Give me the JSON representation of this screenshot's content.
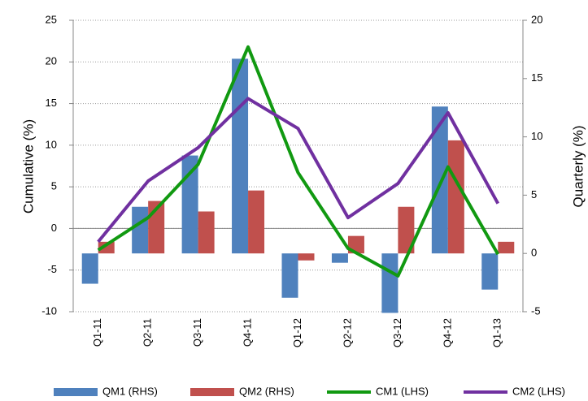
{
  "chart_data": {
    "type": "combo",
    "y_label": "Cumulative (%)",
    "y2_label": "Quarterly (%)",
    "categories": [
      "Q1-11",
      "Q2-11",
      "Q3-11",
      "Q4-11",
      "Q1-12",
      "Q2-12",
      "Q3-12",
      "Q4-12",
      "Q1-13"
    ],
    "series": [
      {
        "name": "QM1 (RHS)",
        "type": "bar",
        "axis": "y2",
        "color": "#4f81bd",
        "values": [
          -2.6,
          4.0,
          8.4,
          16.7,
          -3.8,
          -0.8,
          -5.1,
          12.6,
          -3.1
        ]
      },
      {
        "name": "QM2 (RHS)",
        "type": "bar",
        "axis": "y2",
        "color": "#c0504d",
        "values": [
          1.0,
          4.5,
          3.6,
          5.4,
          -0.6,
          1.5,
          4.0,
          9.7,
          1.0
        ]
      },
      {
        "name": "CM1 (LHS)",
        "type": "line",
        "axis": "y",
        "color": "#119911",
        "values": [
          -2.6,
          1.3,
          7.7,
          21.8,
          6.7,
          -2.4,
          -5.7,
          7.4,
          -3.1
        ]
      },
      {
        "name": "CM2 (LHS)",
        "type": "line",
        "axis": "y",
        "color": "#7030a0",
        "values": [
          -1.6,
          5.7,
          9.7,
          15.6,
          12.0,
          1.3,
          5.4,
          13.9,
          3.0
        ]
      }
    ],
    "ylim": [
      -10,
      25
    ],
    "yticks": [
      -10,
      -5,
      0,
      5,
      10,
      15,
      20,
      25
    ],
    "y2lim": [
      -5,
      20
    ],
    "y2ticks": [
      -5,
      0,
      5,
      10,
      15,
      20
    ],
    "grid": true,
    "legend": "bottom"
  }
}
